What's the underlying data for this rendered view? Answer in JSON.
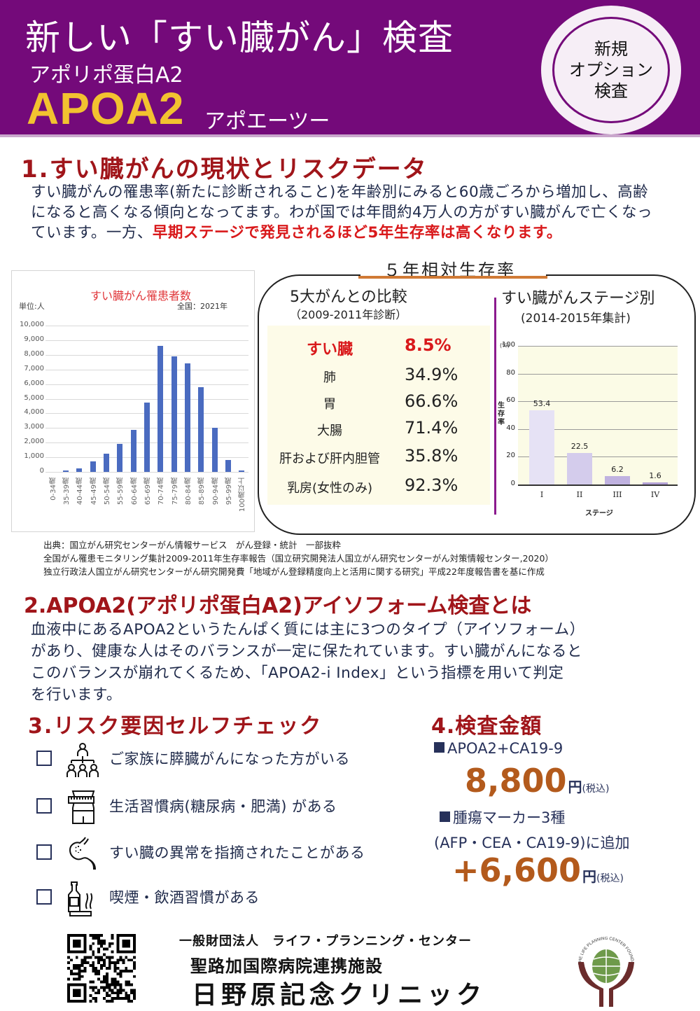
{
  "header": {
    "title": "新しい「すい臓がん」検査",
    "subtitle": "アポリポ蛋白A2",
    "product": "APOA2",
    "product_reading": "アポエーツー",
    "badge": [
      "新規",
      "オプション",
      "検査"
    ],
    "colors": {
      "background": "#740a7a",
      "product": "#f2c230"
    }
  },
  "section1": {
    "title": "1.すい臓がんの現状とリスクデータ",
    "paragraph_plain": "すい臓がんの罹患率(新たに診断されること)を年齢別にみると60歳ごろから増加し、高齢になると高くなる傾向となってます。わが国では年間約4万人の方がすい臓がんで亡くなっています。一方、",
    "paragraph_highlight": "早期ステージで発見されるほど5年生存率は高くなります。"
  },
  "incidence_chart": {
    "title": "すい臓がん罹患者数",
    "unit": "単位:人",
    "region_year": "全国：2021年",
    "y_ticks": [
      "10,000",
      "9,000",
      "8,000",
      "7,000",
      "6,000",
      "5,000",
      "4,000",
      "3,000",
      "2,000",
      "1,000",
      "0"
    ]
  },
  "survival": {
    "heading": "５年相対生存率",
    "comparison": {
      "title": "5大がんとの比較",
      "subtitle": "（2009-2011年診断）",
      "rows": [
        {
          "name": "すい臓",
          "value": "8.5%"
        },
        {
          "name": "肺",
          "value": "34.9%"
        },
        {
          "name": "胃",
          "value": "66.6%"
        },
        {
          "name": "大腸",
          "value": "71.4%"
        },
        {
          "name": "肝および肝内胆管",
          "value": "35.8%"
        },
        {
          "name": "乳房(女性のみ)",
          "value": "92.3%"
        }
      ]
    },
    "stage": {
      "title": "すい臓がんステージ別",
      "subtitle": "(2014-2015年集計)",
      "unit": "(%)",
      "ylabel": "生存率",
      "xlabel": "ステージ",
      "y_ticks": [
        "100",
        "80",
        "60",
        "40",
        "20",
        "0"
      ]
    }
  },
  "chart_data": [
    {
      "type": "bar",
      "title": "すい臓がん罹患者数",
      "subtitle": "全国：2021年",
      "xlabel": "",
      "ylabel": "単位:人",
      "ylim": [
        0,
        10000
      ],
      "grid": true,
      "categories": [
        "0-34歳",
        "35-39歳",
        "40-44歳",
        "45-49歳",
        "50-54歳",
        "55-59歳",
        "60-64歳",
        "65-69歳",
        "70-74歳",
        "75-79歳",
        "80-84歳",
        "85-89歳",
        "90-94歳",
        "95-99歳",
        "100歳以上"
      ],
      "values": [
        0,
        100,
        250,
        700,
        1250,
        1900,
        2850,
        4750,
        8600,
        7900,
        7400,
        5800,
        3000,
        800,
        100
      ],
      "color": "#4a6bc0"
    },
    {
      "type": "table",
      "title": "5大がんとの比較（2009-2011年診断）",
      "categories": [
        "すい臓",
        "肺",
        "胃",
        "大腸",
        "肝および肝内胆管",
        "乳房(女性のみ)"
      ],
      "values": [
        8.5,
        34.9,
        66.6,
        71.4,
        35.8,
        92.3
      ],
      "unit": "%"
    },
    {
      "type": "bar",
      "title": "すい臓がんステージ別 (2014-2015年集計)",
      "xlabel": "ステージ",
      "ylabel": "生存率 (%)",
      "ylim": [
        0,
        100
      ],
      "grid": true,
      "categories": [
        "I",
        "II",
        "III",
        "IV"
      ],
      "values": [
        53.4,
        22.5,
        6.2,
        1.6
      ],
      "value_labels": [
        "53.4",
        "22.5",
        "6.2",
        "1.6"
      ],
      "colors": [
        "#e6e2f5",
        "#d4ccec",
        "#c0b2e0",
        "#b4a2d6"
      ]
    }
  ],
  "sources": [
    "出典：国立がん研究センターがん情報サービス　がん登録・統計　一部抜粋",
    "全国がん罹患モニタリング集計2009-2011年生存率報告（国立研究開発法人国立がん研究センターがん対策情報センター,2020）",
    "独立行政法人国立がん研究センターがん研究開発費「地域がん登録精度向上と活用に関する研究」平成22年度報告書を基に作成"
  ],
  "section2": {
    "title": "2.APOA2(アポリポ蛋白A2)アイソフォーム検査とは",
    "lines": [
      "血液中にあるAPOA2というたんぱく質には主に3つのタイプ（アイソフォーム）",
      "があり、健康な人はそのバランスが一定に保たれています。すい臓がんになると",
      "このバランスが崩れてくるため、「APOA2-i Index」という指標を用いて判定",
      "を行います。"
    ]
  },
  "section3": {
    "title": "3.リスク要因セルフチェック",
    "items": [
      {
        "icon": "family-tree-icon",
        "text": "ご家族に膵臓がんになった方がいる"
      },
      {
        "icon": "waist-measure-icon",
        "text": "生活習慣病(糖尿病・肥満) がある"
      },
      {
        "icon": "stomach-icon",
        "text": "すい臓の異常を指摘されたことがある"
      },
      {
        "icon": "bottle-cigarette-icon",
        "text": "喫煙・飲酒習慣がある"
      }
    ]
  },
  "section4": {
    "title": "4.検査金額",
    "plan1_label": "APOA2+CA19-9",
    "plan1_price": "8,800",
    "plan2_label": "腫瘍マーカー3種",
    "plan2_detail": "(AFP・CEA・CA19-9)に追加",
    "plan2_price": "+6,600",
    "yen": "円",
    "tax": "(税込)"
  },
  "footer": {
    "org": "一般財団法人　ライフ・プランニング・センター",
    "affiliation": "聖路加国際病院連携施設",
    "clinic": "日野原記念クリニック",
    "logo_text": "THE LIFE PLANNING CENTER FOUNDATION"
  }
}
